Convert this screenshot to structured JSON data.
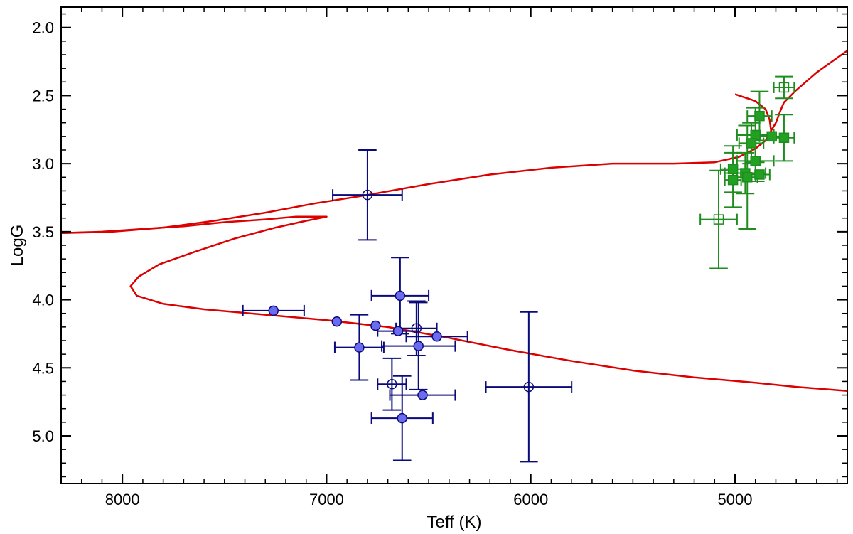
{
  "chart_data": {
    "type": "scatter",
    "title": "",
    "xlabel": "Teff (K)",
    "ylabel": "LogG",
    "xlim": [
      8300,
      4450
    ],
    "ylim": [
      1.85,
      5.35
    ],
    "x_ticks": [
      8000,
      7000,
      6000,
      5000
    ],
    "x_tick_labels": [
      "8000",
      "7000",
      "6000",
      "5000"
    ],
    "y_ticks": [
      2.0,
      2.5,
      3.0,
      3.5,
      4.0,
      4.5,
      5.0
    ],
    "y_tick_labels": [
      "2.0",
      "2.5",
      "3.0",
      "3.5",
      "4.0",
      "4.5",
      "5.0"
    ],
    "x_reversed": true,
    "y_reversed": true,
    "grid": false,
    "legend": "none",
    "colors": {
      "isochrone": "#dd0000",
      "dwarf_edge": "#0a0a7a",
      "dwarf_fill": "#6b6bf0",
      "giant_edge": "#1e8c1e",
      "giant_fill": "#22a022"
    },
    "series": [
      {
        "type": "line",
        "style": "isochrone",
        "points": [
          [
            8300,
            3.51
          ],
          [
            8100,
            3.5
          ],
          [
            7900,
            3.48
          ],
          [
            7700,
            3.46
          ],
          [
            7500,
            3.43
          ],
          [
            7300,
            3.41
          ],
          [
            7150,
            3.39
          ],
          [
            7000,
            3.39
          ],
          [
            7100,
            3.42
          ],
          [
            7250,
            3.47
          ],
          [
            7450,
            3.55
          ],
          [
            7650,
            3.65
          ],
          [
            7820,
            3.74
          ],
          [
            7920,
            3.83
          ],
          [
            7960,
            3.9
          ],
          [
            7930,
            3.97
          ],
          [
            7800,
            4.03
          ],
          [
            7600,
            4.07
          ],
          [
            7300,
            4.11
          ],
          [
            7000,
            4.15
          ],
          [
            6700,
            4.2
          ],
          [
            6400,
            4.28
          ],
          [
            6100,
            4.37
          ],
          [
            5800,
            4.45
          ],
          [
            5500,
            4.52
          ],
          [
            5200,
            4.57
          ],
          [
            4900,
            4.61
          ],
          [
            4700,
            4.64
          ],
          [
            4450,
            4.67
          ]
        ]
      },
      {
        "type": "line",
        "style": "isochrone",
        "points": [
          [
            8300,
            3.51
          ],
          [
            8050,
            3.5
          ],
          [
            7800,
            3.47
          ],
          [
            7550,
            3.42
          ],
          [
            7300,
            3.36
          ],
          [
            7050,
            3.29
          ],
          [
            6800,
            3.23
          ],
          [
            6500,
            3.15
          ],
          [
            6200,
            3.08
          ],
          [
            5900,
            3.03
          ],
          [
            5600,
            3.0
          ],
          [
            5300,
            3.0
          ],
          [
            5100,
            2.99
          ],
          [
            4980,
            2.95
          ],
          [
            4900,
            2.89
          ],
          [
            4850,
            2.83
          ],
          [
            4820,
            2.75
          ],
          [
            4800,
            2.7
          ],
          [
            4780,
            2.62
          ],
          [
            4760,
            2.55
          ],
          [
            4700,
            2.46
          ],
          [
            4600,
            2.33
          ],
          [
            4450,
            2.17
          ]
        ]
      },
      {
        "type": "line",
        "style": "isochrone",
        "points": [
          [
            4820,
            2.8
          ],
          [
            4830,
            2.68
          ],
          [
            4850,
            2.6
          ],
          [
            4900,
            2.54
          ],
          [
            4980,
            2.5
          ],
          [
            5000,
            2.49
          ]
        ]
      },
      {
        "name": "",
        "marker": "circle",
        "style": "dwarf",
        "points": [
          {
            "x": 6800,
            "y": 3.23,
            "xerr": 170,
            "yerr": 0.33,
            "filled": false
          },
          {
            "x": 7260,
            "y": 4.08,
            "xerr": 150,
            "yerr": 0,
            "filled": true
          },
          {
            "x": 6950,
            "y": 4.16,
            "xerr": 0,
            "yerr": 0,
            "filled": true
          },
          {
            "x": 6640,
            "y": 3.97,
            "xerr": 140,
            "yerr": 0.28,
            "filled": true
          },
          {
            "x": 6760,
            "y": 4.19,
            "xerr": 0,
            "yerr": 0,
            "filled": true
          },
          {
            "x": 6650,
            "y": 4.23,
            "xerr": 100,
            "yerr": 0,
            "filled": true
          },
          {
            "x": 6560,
            "y": 4.21,
            "xerr": 100,
            "yerr": 0.2,
            "filled": false
          },
          {
            "x": 6460,
            "y": 4.27,
            "xerr": 150,
            "yerr": 0,
            "filled": true
          },
          {
            "x": 6840,
            "y": 4.35,
            "xerr": 120,
            "yerr": 0.24,
            "filled": true
          },
          {
            "x": 6550,
            "y": 4.34,
            "xerr": 180,
            "yerr": 0.32,
            "filled": true
          },
          {
            "x": 6680,
            "y": 4.62,
            "xerr": 70,
            "yerr": 0.19,
            "filled": false
          },
          {
            "x": 6530,
            "y": 4.7,
            "xerr": 160,
            "yerr": 0,
            "filled": true
          },
          {
            "x": 6630,
            "y": 4.87,
            "xerr": 150,
            "yerr": 0.31,
            "filled": true
          },
          {
            "x": 6010,
            "y": 4.64,
            "xerr": 210,
            "yerr": 0.55,
            "filled": false
          }
        ]
      },
      {
        "name": "",
        "marker": "square",
        "style": "giant",
        "points": [
          {
            "x": 4760,
            "y": 2.44,
            "xerr": 50,
            "yerr": 0.08,
            "filled": false
          },
          {
            "x": 4880,
            "y": 2.65,
            "xerr": 60,
            "yerr": 0.18,
            "filled": true
          },
          {
            "x": 4900,
            "y": 2.79,
            "xerr": 90,
            "yerr": 0.2,
            "filled": true
          },
          {
            "x": 4920,
            "y": 2.85,
            "xerr": 60,
            "yerr": 0.15,
            "filled": true
          },
          {
            "x": 4820,
            "y": 2.8,
            "xerr": 60,
            "yerr": 0,
            "filled": true
          },
          {
            "x": 4760,
            "y": 2.81,
            "xerr": 50,
            "yerr": 0.17,
            "filled": true
          },
          {
            "x": 4900,
            "y": 2.98,
            "xerr": 90,
            "yerr": 0.15,
            "filled": true
          },
          {
            "x": 5010,
            "y": 3.04,
            "xerr": 60,
            "yerr": 0.17,
            "filled": true
          },
          {
            "x": 4950,
            "y": 3.07,
            "xerr": 100,
            "yerr": 0.15,
            "filled": true
          },
          {
            "x": 4880,
            "y": 3.08,
            "xerr": 50,
            "yerr": 0,
            "filled": true
          },
          {
            "x": 4940,
            "y": 3.1,
            "xerr": 50,
            "yerr": 0.38,
            "filled": true
          },
          {
            "x": 5010,
            "y": 3.12,
            "xerr": 40,
            "yerr": 0.2,
            "filled": true
          },
          {
            "x": 5080,
            "y": 3.41,
            "xerr": 90,
            "yerr": 0.36,
            "filled": false
          }
        ]
      }
    ]
  }
}
